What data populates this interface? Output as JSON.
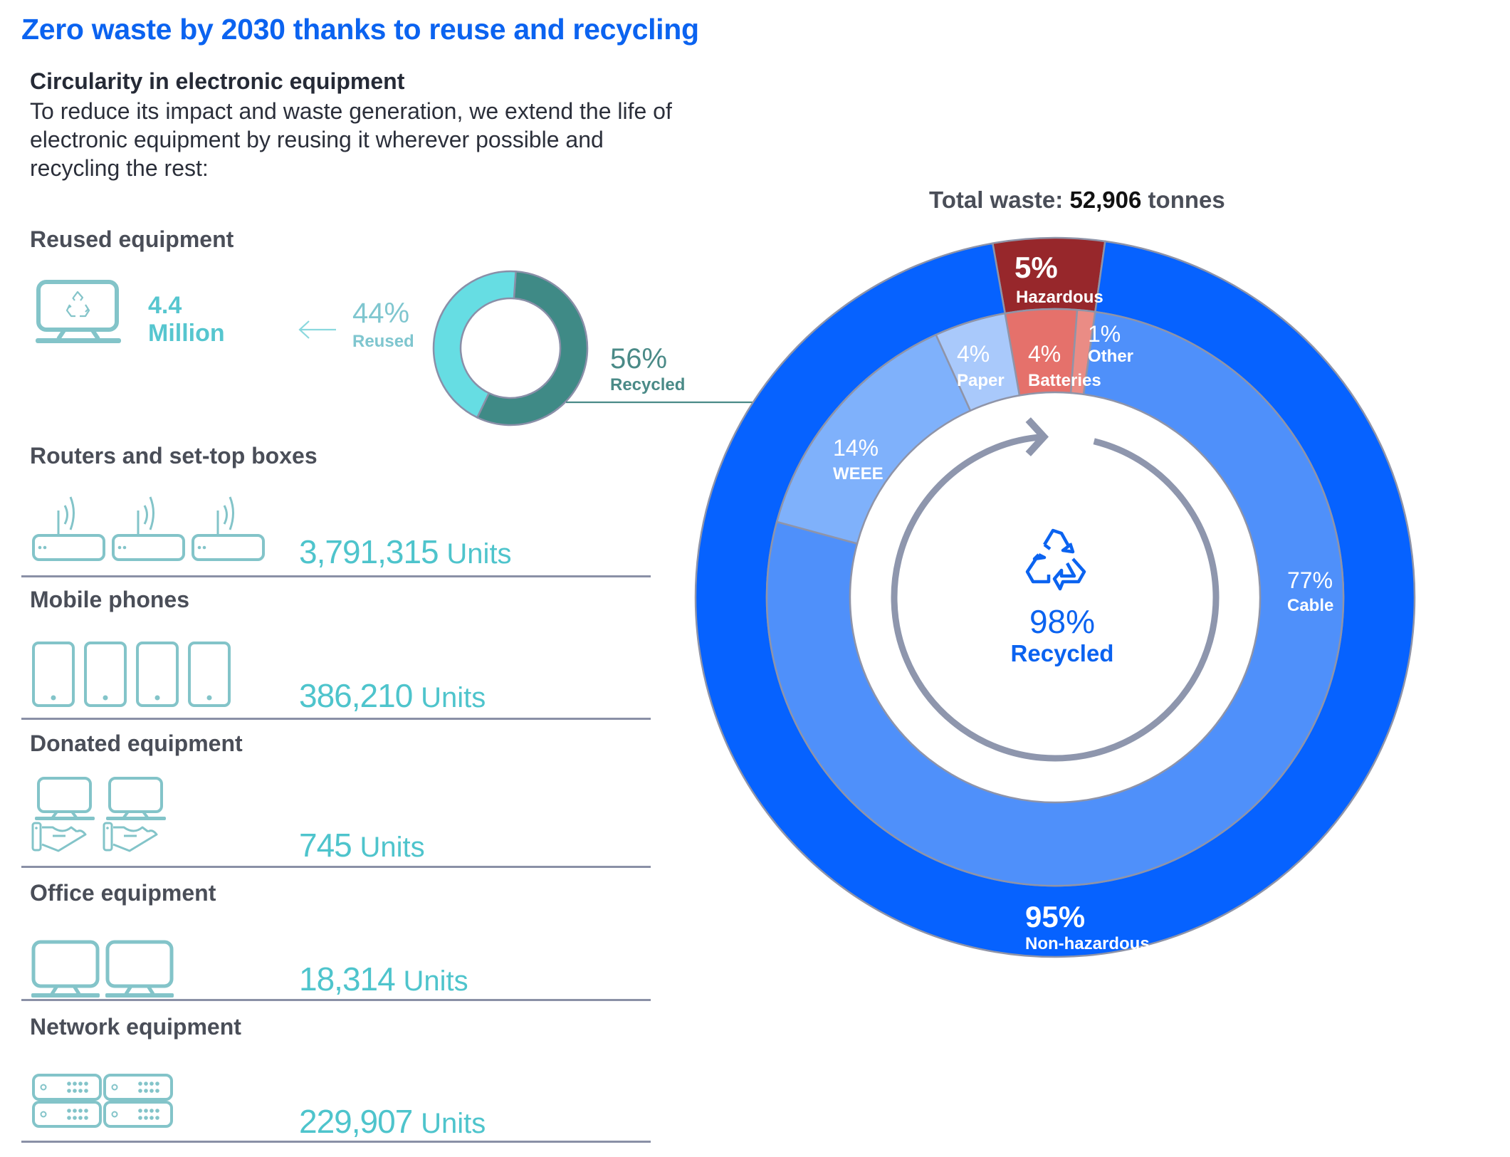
{
  "header": {
    "title": "Zero waste by 2030 thanks to reuse and recycling",
    "subtitle": "Circularity in electronic equipment",
    "intro": "To reduce its impact and waste generation, we extend the life of electronic equipment by reusing it wherever possible and recycling the rest:"
  },
  "reused": {
    "label": "Reused equipment",
    "amount": "4.4",
    "amount_unit": "Million",
    "icon": "monitor-recycle-icon"
  },
  "categories": [
    {
      "label": "Routers and set-top boxes",
      "value": "3,791,315",
      "unit": "Units",
      "icon": "router-icon",
      "icon_count": 3
    },
    {
      "label": "Mobile phones",
      "value": "386,210",
      "unit": "Units",
      "icon": "mobile-phone-icon",
      "icon_count": 4
    },
    {
      "label": "Donated equipment",
      "value": "745",
      "unit": "Units",
      "icon": "donated-monitor-icon",
      "icon_count": 2
    },
    {
      "label": "Office equipment",
      "value": "18,314",
      "unit": "Units",
      "icon": "monitor-icon",
      "icon_count": 2
    },
    {
      "label": "Network equipment",
      "value": "229,907",
      "unit": "Units",
      "icon": "server-rack-icon",
      "icon_count": 4
    }
  ],
  "chart_data": [
    {
      "type": "pie",
      "title": "Reused vs recycled equipment",
      "style": "donut",
      "slices": [
        {
          "label": "Reused",
          "value": 44,
          "display": "44%",
          "color": "#66dde3"
        },
        {
          "label": "Recycled",
          "value": 56,
          "display": "56%",
          "color": "#3f8a86"
        }
      ]
    },
    {
      "type": "pie",
      "style": "nested-donut",
      "title_prefix": "Total waste:",
      "title_value": "52,906",
      "title_suffix": "tonnes",
      "outer_ring": [
        {
          "label": "Hazardous",
          "value": 5,
          "display": "5%",
          "color": "#97272b"
        },
        {
          "label": "Non-hazardous",
          "value": 95,
          "display": "95%",
          "color": "#0662ff"
        }
      ],
      "inner_ring": [
        {
          "label": "Batteries",
          "value": 4,
          "display": "4%",
          "color": "#e5716b"
        },
        {
          "label": "Other",
          "value": 1,
          "display": "1%",
          "color": "#ea8c85"
        },
        {
          "label": "Cable",
          "value": 77,
          "display": "77%",
          "color": "#4f90fa"
        },
        {
          "label": "WEEE",
          "value": 14,
          "display": "14%",
          "color": "#7fb1fb"
        },
        {
          "label": "Paper",
          "value": 4,
          "display": "4%",
          "color": "#a9c9fb"
        }
      ],
      "center": {
        "value": "98%",
        "label": "Recycled",
        "icon": "recycle-icon",
        "color": "#0b63f0"
      }
    }
  ],
  "colors": {
    "accent": "#0b63f0",
    "teal": "#56c6cf",
    "icon_teal": "#83c4c9",
    "divider": "#8a90a6",
    "cycle_arrow": "#8e96ad"
  }
}
